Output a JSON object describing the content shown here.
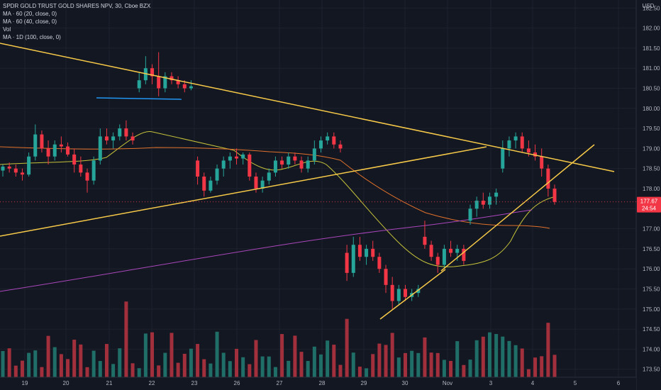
{
  "legend": {
    "symbol": "SPDR GOLD TRUST GOLD SHARES NPV, 30, Cboe BZX",
    "ma1": "MA · 60 (20, close, 0)",
    "ma2": "MA · 60 (40, close, 0)",
    "vol": "Vol",
    "ma3": "MA · 1D (100, close, 0)"
  },
  "currency": "USD",
  "price_badge": {
    "price": "177.67",
    "countdown": "24:54",
    "color": "#f23645"
  },
  "colors": {
    "up": "#26a69a",
    "down": "#f23645",
    "vol_up": "#1f6e67",
    "vol_down": "#a12f3c",
    "ma20": "#c5c23a",
    "ma40": "#e0712b",
    "ma100": "#ab47bc",
    "trendline": "#f7c948",
    "support": "#2196f3",
    "background": "#131722",
    "grid": "#1e222d"
  },
  "chart_data": {
    "type": "candlestick",
    "ylim": [
      173.3,
      182.7
    ],
    "y_ticks": [
      "173.50",
      "174.00",
      "174.50",
      "175.00",
      "175.50",
      "176.00",
      "176.50",
      "177.00",
      "177.50",
      "178.00",
      "178.50",
      "179.00",
      "179.50",
      "180.00",
      "180.50",
      "181.00",
      "181.50",
      "182.00",
      "182.50"
    ],
    "x_ticks": [
      "19",
      "20",
      "21",
      "22",
      "23",
      "26",
      "27",
      "28",
      "29",
      "30",
      "Nov",
      "3",
      "4",
      "5",
      "6"
    ],
    "grid": true,
    "current_price": 177.67,
    "candles_ohlc": [
      [
        178.45,
        178.6,
        178.3,
        178.55
      ],
      [
        178.55,
        178.65,
        178.4,
        178.5
      ],
      [
        178.5,
        178.6,
        178.3,
        178.4
      ],
      [
        178.4,
        178.5,
        178.2,
        178.35
      ],
      [
        178.35,
        178.9,
        178.3,
        178.8
      ],
      [
        178.8,
        179.6,
        178.7,
        179.35
      ],
      [
        179.35,
        179.45,
        178.9,
        179.0
      ],
      [
        179.0,
        179.2,
        178.6,
        178.8
      ],
      [
        178.8,
        179.2,
        178.7,
        179.1
      ],
      [
        179.1,
        179.3,
        178.9,
        179.05
      ],
      [
        179.05,
        179.15,
        178.8,
        178.85
      ],
      [
        178.85,
        179.0,
        178.4,
        178.6
      ],
      [
        178.6,
        178.8,
        178.3,
        178.4
      ],
      [
        178.4,
        178.5,
        177.9,
        178.2
      ],
      [
        178.2,
        178.8,
        178.1,
        178.7
      ],
      [
        178.7,
        179.5,
        178.6,
        179.3
      ],
      [
        179.3,
        179.5,
        179.1,
        179.2
      ],
      [
        179.2,
        179.4,
        179.0,
        179.3
      ],
      [
        179.3,
        179.6,
        179.2,
        179.5
      ],
      [
        179.5,
        179.7,
        179.2,
        179.3
      ],
      [
        179.3,
        179.4,
        179.1,
        179.2
      ],
      [
        180.5,
        180.9,
        180.4,
        180.7
      ],
      [
        180.7,
        181.3,
        180.6,
        181.0
      ],
      [
        181.0,
        181.1,
        180.6,
        180.8
      ],
      [
        180.8,
        181.4,
        180.3,
        180.5
      ],
      [
        180.5,
        180.9,
        180.4,
        180.8
      ],
      [
        180.8,
        180.9,
        180.6,
        180.7
      ],
      [
        180.7,
        180.8,
        180.5,
        180.6
      ],
      [
        180.6,
        180.7,
        180.4,
        180.5
      ],
      [
        180.5,
        180.7,
        180.45,
        180.55
      ],
      [
        178.7,
        178.8,
        178.1,
        178.3
      ],
      [
        178.3,
        178.4,
        177.8,
        177.95
      ],
      [
        177.95,
        178.3,
        177.9,
        178.2
      ],
      [
        178.2,
        178.6,
        178.1,
        178.5
      ],
      [
        178.5,
        178.8,
        178.3,
        178.7
      ],
      [
        178.7,
        178.9,
        178.5,
        178.8
      ],
      [
        178.8,
        179.0,
        178.6,
        178.75
      ],
      [
        178.75,
        178.9,
        178.6,
        178.85
      ],
      [
        178.85,
        178.9,
        178.2,
        178.3
      ],
      [
        178.3,
        178.4,
        177.9,
        178.0
      ],
      [
        178.0,
        178.3,
        177.9,
        178.2
      ],
      [
        178.2,
        178.5,
        178.1,
        178.4
      ],
      [
        178.4,
        178.8,
        178.3,
        178.7
      ],
      [
        178.7,
        178.8,
        178.5,
        178.6
      ],
      [
        178.6,
        178.9,
        178.5,
        178.8
      ],
      [
        178.8,
        178.9,
        178.6,
        178.7
      ],
      [
        178.7,
        178.8,
        178.4,
        178.5
      ],
      [
        178.5,
        178.8,
        178.4,
        178.7
      ],
      [
        178.7,
        179.2,
        178.6,
        179.0
      ],
      [
        179.0,
        179.3,
        178.9,
        179.2
      ],
      [
        179.2,
        179.4,
        179.1,
        179.3
      ],
      [
        179.3,
        179.4,
        179.0,
        179.1
      ],
      [
        179.1,
        179.2,
        178.9,
        179.0
      ],
      [
        176.4,
        176.6,
        175.7,
        175.9
      ],
      [
        175.9,
        176.8,
        175.8,
        176.6
      ],
      [
        176.6,
        176.8,
        176.2,
        176.3
      ],
      [
        176.3,
        176.6,
        176.1,
        176.5
      ],
      [
        176.5,
        176.7,
        176.2,
        176.3
      ],
      [
        176.3,
        176.4,
        175.9,
        176.0
      ],
      [
        176.0,
        176.1,
        175.4,
        175.6
      ],
      [
        175.6,
        175.8,
        175.0,
        175.2
      ],
      [
        175.2,
        175.6,
        175.1,
        175.5
      ],
      [
        175.5,
        175.6,
        175.2,
        175.3
      ],
      [
        175.3,
        175.5,
        175.2,
        175.4
      ],
      [
        175.4,
        175.6,
        175.3,
        175.5
      ],
      [
        176.8,
        177.2,
        176.5,
        176.6
      ],
      [
        176.6,
        176.7,
        176.2,
        176.3
      ],
      [
        176.3,
        176.4,
        175.9,
        176.1
      ],
      [
        176.1,
        176.6,
        176.0,
        176.5
      ],
      [
        176.5,
        176.7,
        176.3,
        176.4
      ],
      [
        176.4,
        176.6,
        176.2,
        176.5
      ],
      [
        176.5,
        176.6,
        176.1,
        176.2
      ],
      [
        177.2,
        177.6,
        177.1,
        177.5
      ],
      [
        177.5,
        177.8,
        177.3,
        177.7
      ],
      [
        177.7,
        177.9,
        177.5,
        177.6
      ],
      [
        177.6,
        177.9,
        177.5,
        177.8
      ],
      [
        177.8,
        178.0,
        177.6,
        177.9
      ],
      [
        178.5,
        179.2,
        178.4,
        179.0
      ],
      [
        179.0,
        179.3,
        178.8,
        179.2
      ],
      [
        179.2,
        179.4,
        179.0,
        179.3
      ],
      [
        179.3,
        179.4,
        178.9,
        179.0
      ],
      [
        179.0,
        179.2,
        178.8,
        178.9
      ],
      [
        178.9,
        179.1,
        178.7,
        178.8
      ],
      [
        178.8,
        179.0,
        178.3,
        178.5
      ],
      [
        178.5,
        178.6,
        177.8,
        178.0
      ],
      [
        178.0,
        178.1,
        177.6,
        177.67
      ]
    ]
  }
}
